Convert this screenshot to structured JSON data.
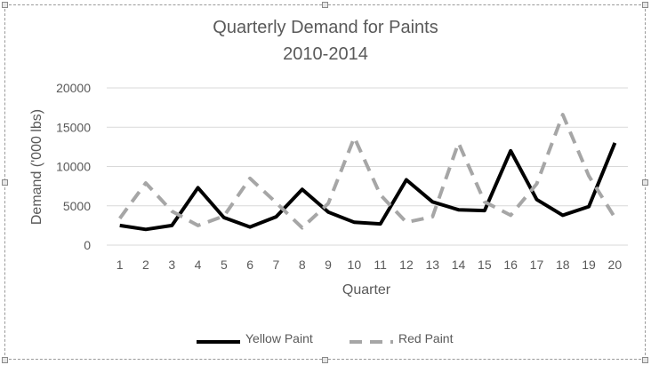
{
  "chart_data": {
    "type": "line",
    "title": "Quarterly Demand for Paints",
    "subtitle": "2010-2014",
    "xlabel": "Quarter",
    "ylabel": "Demand ('000 lbs)",
    "categories": [
      "1",
      "2",
      "3",
      "4",
      "5",
      "6",
      "7",
      "8",
      "9",
      "10",
      "11",
      "12",
      "13",
      "14",
      "15",
      "16",
      "17",
      "18",
      "19",
      "20"
    ],
    "ylim": [
      0,
      20000
    ],
    "yticks": [
      0,
      5000,
      10000,
      15000,
      20000
    ],
    "grid": true,
    "legend_position": "bottom",
    "series": [
      {
        "name": "Yellow Paint",
        "color": "#000000",
        "style": "solid",
        "values": [
          2500,
          2000,
          2500,
          7300,
          3500,
          2300,
          3600,
          7100,
          4200,
          2900,
          2700,
          8300,
          5500,
          4500,
          4400,
          12000,
          5800,
          3800,
          4900,
          13000
        ]
      },
      {
        "name": "Red Paint",
        "color": "#a6a6a6",
        "style": "dashed",
        "values": [
          3400,
          7900,
          4300,
          2500,
          3700,
          8500,
          5400,
          2200,
          5300,
          13700,
          6400,
          2900,
          3600,
          13000,
          5500,
          3800,
          7800,
          16600,
          8800,
          3500
        ]
      }
    ]
  }
}
